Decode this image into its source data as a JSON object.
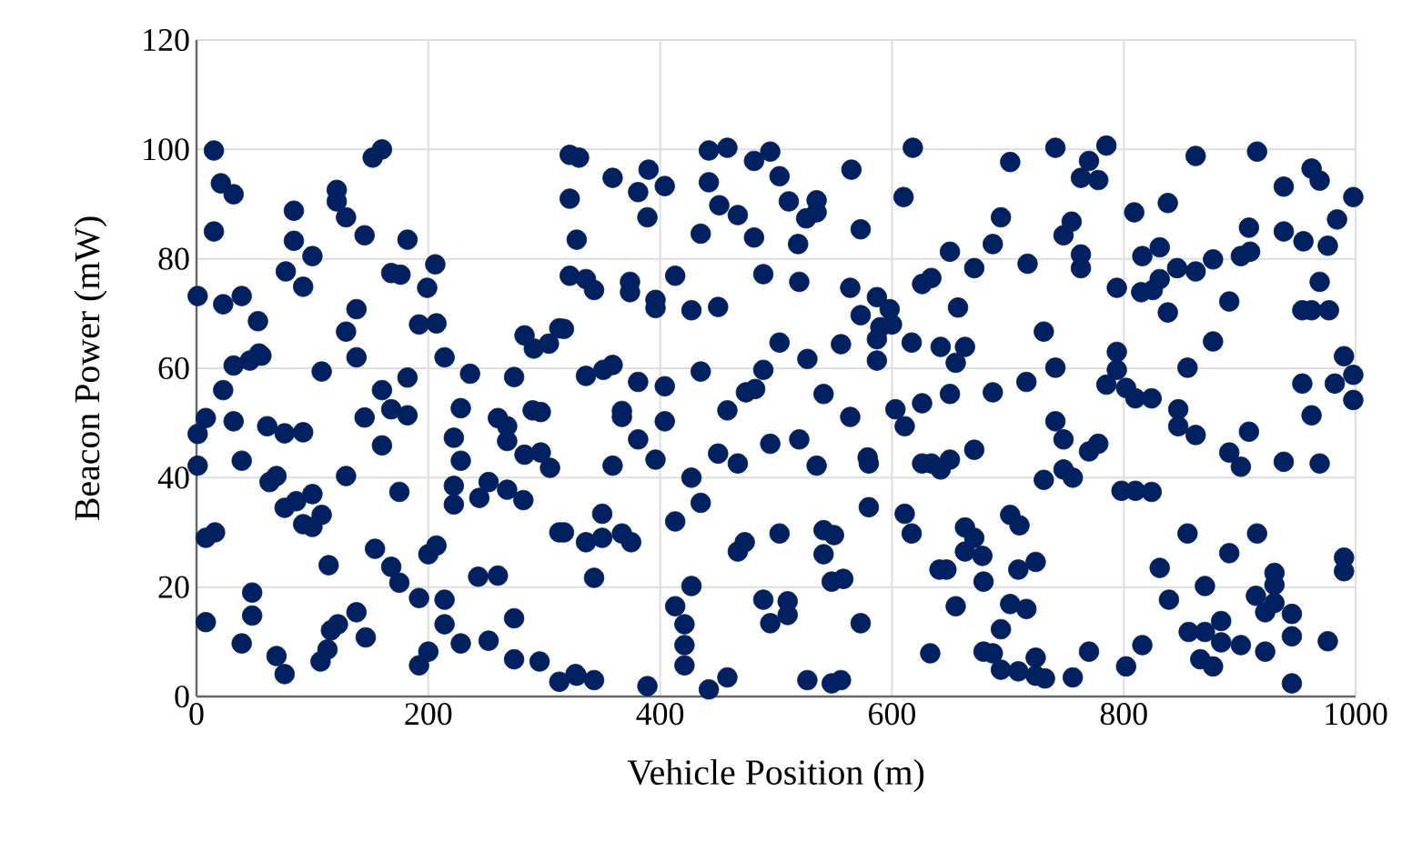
{
  "chart_data": {
    "type": "scatter",
    "xlabel": "Vehicle Position (m)",
    "ylabel": "Beacon Power (mW)",
    "xlim": [
      0,
      1000
    ],
    "ylim": [
      0,
      120
    ],
    "xticks": [
      0,
      200,
      400,
      600,
      800,
      1000
    ],
    "yticks": [
      0,
      20,
      40,
      60,
      80,
      100,
      120
    ],
    "grid": true,
    "marker": "circle",
    "series": [
      {
        "color": "#002060",
        "x": [
          15,
          152,
          160,
          21,
          32,
          121,
          121,
          129,
          84,
          15,
          53,
          84,
          145,
          182,
          100,
          56,
          77,
          92,
          168,
          176,
          206,
          199,
          1,
          23,
          39,
          138,
          129,
          192,
          207,
          138,
          214,
          54,
          46,
          32,
          108,
          23,
          160,
          182,
          236,
          274,
          283,
          291,
          304,
          313,
          8,
          1,
          32,
          61,
          76,
          92,
          145,
          168,
          182,
          160,
          228,
          222,
          228,
          260,
          268,
          268,
          283,
          297,
          305,
          290,
          297,
          1,
          39,
          63,
          69,
          129,
          175,
          76,
          86,
          100,
          92,
          100,
          108,
          222,
          222,
          244,
          252,
          268,
          282,
          8,
          16,
          313,
          114,
          154,
          168,
          175,
          200,
          207,
          192,
          214,
          243,
          260,
          48,
          48,
          8,
          39,
          69,
          76,
          107,
          113,
          116,
          122,
          138,
          146,
          192,
          200,
          214,
          228,
          252,
          274,
          274,
          296,
          313,
          327,
          322,
          330,
          322,
          328,
          359,
          381,
          390,
          404,
          389,
          442,
          458,
          442,
          451,
          467,
          435,
          481,
          495,
          503,
          481,
          511,
          526,
          535,
          535,
          519,
          565,
          573,
          610,
          618,
          322,
          336,
          343,
          317,
          374,
          374,
          396,
          396,
          413,
          427,
          450,
          489,
          520,
          564,
          587,
          573,
          598,
          590,
          600,
          587,
          617,
          626,
          634,
          642,
          503,
          527,
          556,
          587,
          336,
          351,
          359,
          381,
          404,
          435,
          367,
          367,
          381,
          404,
          396,
          359,
          474,
          482,
          489,
          458,
          450,
          467,
          495,
          520,
          535,
          541,
          564,
          579,
          580,
          603,
          611,
          626,
          626,
          634,
          642,
          427,
          435,
          413,
          350,
          336,
          350,
          367,
          375,
          317,
          343,
          467,
          473,
          503,
          541,
          550,
          541,
          548,
          558,
          580,
          611,
          617,
          641,
          413,
          421,
          421,
          421,
          427,
          489,
          495,
          510,
          510,
          573,
          633,
          328,
          343,
          389,
          442,
          458,
          527,
          548,
          556,
          650,
          671,
          687,
          694,
          702,
          741,
          785,
          770,
          763,
          778,
          755,
          748,
          763,
          763,
          717,
          657,
          663,
          655,
          650,
          687,
          716,
          731,
          741,
          794,
          809,
          838,
          816,
          831,
          846,
          862,
          877,
          831,
          815,
          825,
          838,
          862,
          915,
          938,
          962,
          969,
          998,
          984,
          908,
          938,
          955,
          976,
          901,
          909,
          891,
          969,
          954,
          962,
          977,
          877,
          794,
          794,
          785,
          802,
          810,
          824,
          855,
          847,
          847,
          862,
          908,
          891,
          901,
          938,
          969,
          954,
          962,
          982,
          998,
          990,
          998,
          741,
          748,
          770,
          778,
          731,
          748,
          756,
          650,
          671,
          798,
          810,
          824,
          663,
          671,
          663,
          678,
          702,
          710,
          709,
          724,
          679,
          647,
          655,
          694,
          702,
          716,
          679,
          687,
          694,
          709,
          724,
          724,
          732,
          756,
          770,
          816,
          802,
          831,
          839,
          855,
          870,
          884,
          891,
          915,
          930,
          930,
          914,
          922,
          930,
          945,
          945,
          976,
          945,
          856,
          870,
          884,
          866,
          877,
          901,
          922,
          990,
          990
        ],
        "values": [
          99.8,
          98.5,
          100,
          93.8,
          91.8,
          92.6,
          90.5,
          87.6,
          88.8,
          85,
          68.6,
          83.3,
          84.3,
          83.5,
          80.5,
          62.3,
          77.7,
          74.9,
          77.4,
          77.1,
          79,
          74.7,
          73.2,
          71.7,
          73.2,
          70.8,
          66.7,
          68,
          68.2,
          62,
          62,
          62.7,
          61.4,
          60.5,
          59.4,
          56,
          56,
          58.3,
          59,
          58.4,
          66,
          63.6,
          64.5,
          67.3,
          50.9,
          48,
          50.3,
          49.4,
          48.1,
          48.3,
          51,
          52.5,
          51.4,
          45.9,
          52.7,
          47.3,
          43.1,
          50.9,
          49.4,
          46.7,
          44.2,
          44.6,
          41.8,
          52.3,
          52,
          42.2,
          43.1,
          39.2,
          40.3,
          40.3,
          37.4,
          34.5,
          35.7,
          37,
          31.5,
          31,
          33.2,
          38.5,
          35.1,
          36.3,
          39.2,
          37.8,
          35.9,
          29,
          30,
          30,
          24,
          27,
          23.7,
          20.8,
          26,
          27.6,
          18,
          17.7,
          21.9,
          22.1,
          19,
          14.8,
          13.6,
          9.7,
          7.4,
          4.1,
          6.4,
          8.6,
          12.1,
          13.2,
          15.4,
          10.8,
          5.7,
          8.2,
          13.2,
          9.7,
          10.2,
          14.3,
          6.8,
          6.4,
          2.7,
          4.1,
          99,
          98.5,
          91,
          83.5,
          94.8,
          92.2,
          96.3,
          93.3,
          87.6,
          99.8,
          100.3,
          94,
          89.8,
          88,
          84.6,
          97.9,
          99.6,
          95.1,
          83.9,
          90.5,
          87.4,
          90.7,
          88.5,
          82.7,
          96.3,
          85.4,
          91.3,
          100.3,
          76.9,
          76.3,
          74.3,
          67.2,
          75.8,
          73.9,
          72.5,
          71,
          76.9,
          70.6,
          71.2,
          77.2,
          75.8,
          74.7,
          73,
          69.7,
          70.8,
          67.5,
          68,
          65.3,
          64.7,
          75.4,
          76.5,
          63.9,
          64.7,
          61.7,
          64.4,
          61.4,
          58.6,
          59.7,
          60.6,
          57.5,
          56.7,
          59.4,
          52.2,
          51.1,
          47,
          50.3,
          43.3,
          42.2,
          55.6,
          56.2,
          59.7,
          52.3,
          44.4,
          42.6,
          46.2,
          47,
          42.2,
          55.3,
          51.1,
          43.7,
          42.6,
          52.5,
          49.4,
          53.6,
          42.6,
          42.6,
          41.5,
          40,
          35.4,
          32,
          33.4,
          28.2,
          29,
          29.8,
          28.2,
          30,
          21.7,
          26.5,
          28.2,
          29.8,
          30.4,
          29.5,
          26,
          21,
          21.5,
          34.6,
          33.4,
          29.8,
          23.2,
          16.5,
          13.2,
          9.4,
          5.7,
          20.2,
          17.7,
          13.4,
          17.4,
          14.9,
          13.4,
          7.9,
          3.8,
          3,
          1.9,
          1.3,
          3.5,
          3,
          2.4,
          3,
          81.3,
          78.3,
          82.7,
          87.6,
          97.7,
          100.3,
          100.7,
          97.9,
          94.8,
          94.4,
          86.8,
          84.3,
          80.8,
          78.3,
          79.1,
          71.1,
          63.9,
          61,
          55.3,
          55.6,
          57.5,
          66.7,
          60.1,
          74.7,
          88.5,
          90.2,
          80.5,
          82.1,
          78.3,
          77.7,
          79.9,
          76.3,
          73.9,
          74.3,
          70.2,
          98.8,
          99.6,
          93.2,
          96.5,
          94.3,
          91.3,
          87.2,
          85.7,
          85,
          83.2,
          82.4,
          80.5,
          81.3,
          72.2,
          75.8,
          70.6,
          70.6,
          70.6,
          64.9,
          63,
          59.7,
          57,
          56.4,
          54.5,
          54.5,
          60.1,
          52.5,
          49.4,
          47.8,
          48.4,
          44.6,
          42,
          42.9,
          42.6,
          57.2,
          51.4,
          57.2,
          58.8,
          62.2,
          54.2,
          50.3,
          47,
          44.8,
          46.2,
          39.6,
          41.5,
          40,
          43.3,
          45.1,
          37.6,
          37.6,
          37.4,
          30.9,
          29,
          26.5,
          25.7,
          33.2,
          31.3,
          23.2,
          24.6,
          21,
          23.2,
          16.5,
          12.3,
          16.9,
          16,
          8.2,
          7.9,
          4.9,
          4.6,
          7.1,
          3.8,
          3.3,
          3.5,
          8.2,
          9.4,
          5.5,
          23.5,
          17.7,
          29.8,
          20.2,
          13.8,
          26.2,
          29.8,
          22.6,
          20.4,
          18.4,
          15.4,
          17.1,
          15.1,
          11,
          10.1,
          2.4,
          11.8,
          11.8,
          9.9,
          6.8,
          5.5,
          9.4,
          8.2,
          25.4,
          22.9
        ]
      }
    ]
  }
}
